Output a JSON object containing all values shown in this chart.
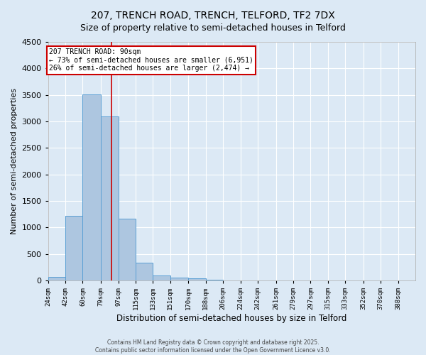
{
  "title": "207, TRENCH ROAD, TRENCH, TELFORD, TF2 7DX",
  "subtitle": "Size of property relative to semi-detached houses in Telford",
  "xlabel": "Distribution of semi-detached houses by size in Telford",
  "ylabel": "Number of semi-detached properties",
  "bin_labels": [
    "24sqm",
    "42sqm",
    "60sqm",
    "79sqm",
    "97sqm",
    "115sqm",
    "133sqm",
    "151sqm",
    "170sqm",
    "188sqm",
    "206sqm",
    "224sqm",
    "242sqm",
    "261sqm",
    "279sqm",
    "297sqm",
    "315sqm",
    "333sqm",
    "352sqm",
    "370sqm",
    "388sqm"
  ],
  "bin_edges": [
    24,
    42,
    60,
    79,
    97,
    115,
    133,
    151,
    170,
    188,
    206,
    224,
    242,
    261,
    279,
    297,
    315,
    333,
    352,
    370,
    388
  ],
  "bar_heights": [
    75,
    1225,
    3510,
    3100,
    1165,
    340,
    95,
    55,
    40,
    20,
    0,
    0,
    0,
    0,
    0,
    0,
    0,
    0,
    0,
    0
  ],
  "bar_color": "#adc6e0",
  "bar_edge_color": "#5a9fd4",
  "red_line_x": 90,
  "annotation_line1": "207 TRENCH ROAD: 90sqm",
  "annotation_line2": "← 73% of semi-detached houses are smaller (6,951)",
  "annotation_line3": "26% of semi-detached houses are larger (2,474) →",
  "annotation_box_color": "#ffffff",
  "annotation_box_edge": "#cc0000",
  "annotation_text_color": "#000000",
  "red_line_color": "#cc0000",
  "ylim": [
    0,
    4500
  ],
  "yticks": [
    0,
    500,
    1000,
    1500,
    2000,
    2500,
    3000,
    3500,
    4000,
    4500
  ],
  "background_color": "#dce9f5",
  "plot_area_color": "#dce9f5",
  "grid_color": "#ffffff",
  "title_fontsize": 10,
  "footer_line1": "Contains HM Land Registry data © Crown copyright and database right 2025.",
  "footer_line2": "Contains public sector information licensed under the Open Government Licence v3.0."
}
